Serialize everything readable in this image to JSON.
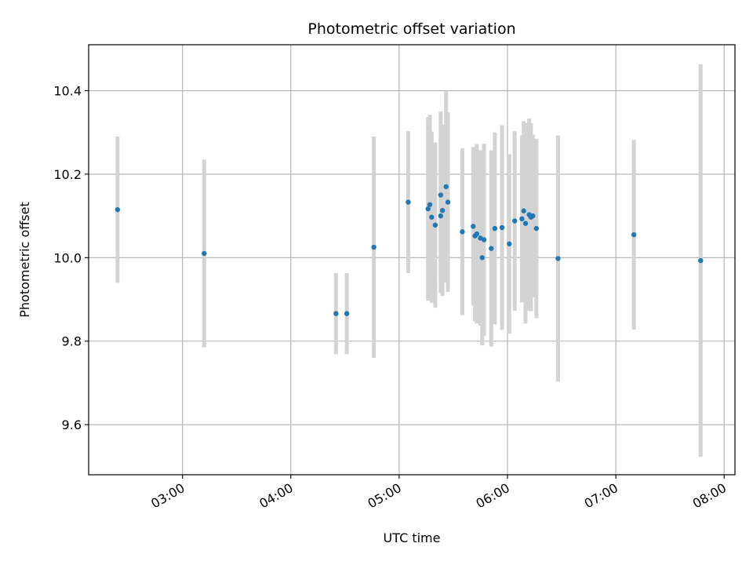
{
  "chart_data": {
    "type": "scatter",
    "title": "Photometric offset variation",
    "xlabel": "UTC time",
    "ylabel": "Photometric offset",
    "x_is_time": true,
    "xlim": [
      "02:08",
      "08:06"
    ],
    "ylim": [
      9.48,
      10.51
    ],
    "x_ticks": [
      "03:00",
      "04:00",
      "05:00",
      "06:00",
      "07:00",
      "08:00"
    ],
    "y_ticks": [
      9.6,
      9.8,
      10.0,
      10.2,
      10.4
    ],
    "y_tick_labels": [
      "9.6",
      "9.8",
      "10.0",
      "10.2",
      "10.4"
    ],
    "grid": true,
    "colors": {
      "points": "#1f77b4",
      "errorbars": "#d3d3d3",
      "grid": "#b0b0b0",
      "axes": "#000000"
    },
    "series": [
      {
        "points": [
          {
            "x": "02:24",
            "y": 10.115,
            "err": 0.175
          },
          {
            "x": "03:12",
            "y": 10.01,
            "err": 0.225
          },
          {
            "x": "04:25",
            "y": 9.866,
            "err": 0.097
          },
          {
            "x": "04:31",
            "y": 9.866,
            "err": 0.097
          },
          {
            "x": "04:46",
            "y": 10.025,
            "err": 0.265
          },
          {
            "x": "05:05",
            "y": 10.133,
            "err": 0.17
          },
          {
            "x": "05:16",
            "y": 10.117,
            "err": 0.22
          },
          {
            "x": "05:17",
            "y": 10.127,
            "err": 0.215
          },
          {
            "x": "05:18",
            "y": 10.097,
            "err": 0.205
          },
          {
            "x": "05:20",
            "y": 10.078,
            "err": 0.198
          },
          {
            "x": "05:23",
            "y": 10.15,
            "err": 0.2
          },
          {
            "x": "05:23",
            "y": 10.1,
            "err": 0.185
          },
          {
            "x": "05:24",
            "y": 10.113,
            "err": 0.205
          },
          {
            "x": "05:26",
            "y": 10.17,
            "err": 0.23
          },
          {
            "x": "05:27",
            "y": 10.133,
            "err": 0.215
          },
          {
            "x": "05:35",
            "y": 10.062,
            "err": 0.2
          },
          {
            "x": "05:41",
            "y": 10.075,
            "err": 0.19
          },
          {
            "x": "05:42",
            "y": 10.052,
            "err": 0.205
          },
          {
            "x": "05:43",
            "y": 10.057,
            "err": 0.215
          },
          {
            "x": "05:45",
            "y": 10.047,
            "err": 0.21
          },
          {
            "x": "05:46",
            "y": 10.0,
            "err": 0.21
          },
          {
            "x": "05:47",
            "y": 10.043,
            "err": 0.23
          },
          {
            "x": "05:51",
            "y": 10.022,
            "err": 0.235
          },
          {
            "x": "05:53",
            "y": 10.07,
            "err": 0.23
          },
          {
            "x": "05:57",
            "y": 10.072,
            "err": 0.245
          },
          {
            "x": "06:01",
            "y": 10.033,
            "err": 0.215
          },
          {
            "x": "06:04",
            "y": 10.088,
            "err": 0.215
          },
          {
            "x": "06:08",
            "y": 10.093,
            "err": 0.2
          },
          {
            "x": "06:09",
            "y": 10.112,
            "err": 0.215
          },
          {
            "x": "06:10",
            "y": 10.082,
            "err": 0.24
          },
          {
            "x": "06:12",
            "y": 10.103,
            "err": 0.23
          },
          {
            "x": "06:13",
            "y": 10.097,
            "err": 0.225
          },
          {
            "x": "06:14",
            "y": 10.1,
            "err": 0.195
          },
          {
            "x": "06:16",
            "y": 10.07,
            "err": 0.215
          },
          {
            "x": "06:28",
            "y": 9.998,
            "err": 0.295
          },
          {
            "x": "07:10",
            "y": 10.055,
            "err": 0.227
          },
          {
            "x": "07:47",
            "y": 9.993,
            "err": 0.47
          }
        ]
      }
    ]
  }
}
